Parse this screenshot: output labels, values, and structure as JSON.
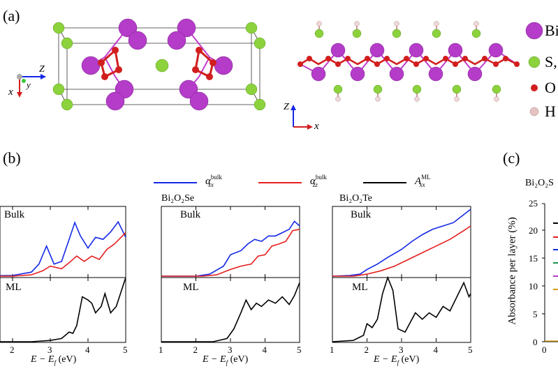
{
  "panel_labels": {
    "a": "(a)",
    "b": "(b)",
    "c": "(c)"
  },
  "legend_structure": {
    "items": [
      {
        "symbol": "Bi",
        "label": "Bi"
      },
      {
        "symbol": "S",
        "label": "S,"
      },
      {
        "symbol": "O",
        "label": "O"
      },
      {
        "symbol": "H",
        "label": "H"
      }
    ]
  },
  "axes_3d": {
    "z": "Z",
    "y": "y",
    "x": "x"
  },
  "axes_2d": {
    "z": "Z",
    "x": "x"
  },
  "colors": {
    "bi": "#b43cc8",
    "s": "#8cd23c",
    "o": "#d21e1e",
    "h": "#e6c3c3",
    "alpha_xx": "#1428e6",
    "alpha_zz": "#e61e1e",
    "a_ml": "#000000"
  },
  "legend_spectra": {
    "alpha_xx": {
      "main": "α",
      "sup": "bulk",
      "sub": "xx"
    },
    "alpha_zz": {
      "main": "α",
      "sup": "bulk",
      "sub": "zz"
    },
    "a_ml": {
      "main": "A",
      "sup": "ML",
      "sub": "xx"
    }
  },
  "panel_b": {
    "col2_title": "Bi₂O₂Se",
    "col3_title": "Bi₂O₂Te",
    "bulk_label": "Bulk",
    "ml_label": "ML",
    "xaxis_label": "E − E",
    "xaxis_sub": "f",
    "xaxis_unit": " (eV)",
    "col1_ticks": [
      "2",
      "3",
      "4",
      "5"
    ],
    "col23_ticks": [
      "1",
      "2",
      "3",
      "4",
      "5"
    ]
  },
  "chart_data": [
    {
      "type": "line",
      "title": "",
      "subplot": "Bulk (column 1, partial)",
      "xlim": [
        1,
        5
      ],
      "series": [
        {
          "name": "α_xx bulk",
          "x": [
            1.0,
            2.0,
            2.5,
            2.7,
            2.9,
            3.1,
            3.3,
            3.5,
            3.65,
            3.8,
            4.0,
            4.2,
            4.4,
            4.6,
            4.8,
            5.0
          ],
          "y": [
            0.0,
            0.01,
            0.06,
            0.18,
            0.45,
            0.18,
            0.22,
            0.55,
            0.8,
            0.6,
            0.42,
            0.58,
            0.55,
            0.66,
            0.81,
            0.58
          ]
        },
        {
          "name": "α_zz bulk",
          "x": [
            1.0,
            2.0,
            2.5,
            2.8,
            3.0,
            3.3,
            3.5,
            3.7,
            3.9,
            4.1,
            4.3,
            4.5,
            4.7,
            5.0
          ],
          "y": [
            0.0,
            0.0,
            0.02,
            0.08,
            0.15,
            0.11,
            0.2,
            0.3,
            0.22,
            0.3,
            0.25,
            0.4,
            0.48,
            0.65
          ]
        }
      ]
    },
    {
      "type": "line",
      "subplot": "ML (column 1, partial)",
      "xlim": [
        1,
        5
      ],
      "series": [
        {
          "name": "A_xx ML",
          "x": [
            1.0,
            2.5,
            3.0,
            3.3,
            3.5,
            3.6,
            3.7,
            3.85,
            4.0,
            4.1,
            4.2,
            4.35,
            4.45,
            4.6,
            4.75,
            5.0
          ],
          "y": [
            0.0,
            0.0,
            0.02,
            0.05,
            0.15,
            0.13,
            0.25,
            0.7,
            0.65,
            0.6,
            0.45,
            0.55,
            0.75,
            0.45,
            0.55,
            1.0
          ]
        }
      ]
    },
    {
      "type": "line",
      "subplot": "Bi₂O₂Se Bulk",
      "xlim": [
        1,
        5
      ],
      "series": [
        {
          "name": "α_xx bulk",
          "x": [
            1.0,
            2.0,
            2.4,
            2.8,
            3.0,
            3.3,
            3.5,
            3.7,
            3.9,
            4.1,
            4.3,
            4.5,
            4.7,
            4.85,
            5.0
          ],
          "y": [
            0.0,
            0.0,
            0.03,
            0.15,
            0.32,
            0.38,
            0.48,
            0.55,
            0.52,
            0.6,
            0.6,
            0.65,
            0.7,
            0.82,
            0.75
          ]
        },
        {
          "name": "α_zz bulk",
          "x": [
            1.0,
            2.2,
            2.6,
            3.0,
            3.3,
            3.6,
            3.8,
            4.0,
            4.2,
            4.4,
            4.6,
            4.8,
            5.0
          ],
          "y": [
            0.0,
            0.0,
            0.02,
            0.1,
            0.15,
            0.18,
            0.3,
            0.32,
            0.45,
            0.48,
            0.52,
            0.68,
            0.7
          ]
        }
      ]
    },
    {
      "type": "line",
      "subplot": "Bi₂O₂Se ML",
      "xlim": [
        1,
        5
      ],
      "series": [
        {
          "name": "A_xx ML",
          "x": [
            1.0,
            2.5,
            2.9,
            3.1,
            3.3,
            3.45,
            3.6,
            3.75,
            3.9,
            4.1,
            4.3,
            4.5,
            4.7,
            4.85,
            5.0
          ],
          "y": [
            0.0,
            0.0,
            0.05,
            0.2,
            0.45,
            0.65,
            0.5,
            0.6,
            0.55,
            0.65,
            0.6,
            0.7,
            0.58,
            0.72,
            0.92
          ]
        }
      ]
    },
    {
      "type": "line",
      "subplot": "Bi₂O₂Te Bulk",
      "xlim": [
        1,
        5
      ],
      "series": [
        {
          "name": "α_xx bulk",
          "x": [
            1.0,
            1.5,
            1.8,
            2.0,
            2.3,
            2.6,
            3.0,
            3.3,
            3.6,
            3.9,
            4.2,
            4.5,
            4.8,
            5.0
          ],
          "y": [
            0.0,
            0.01,
            0.03,
            0.1,
            0.18,
            0.28,
            0.4,
            0.52,
            0.62,
            0.7,
            0.75,
            0.8,
            0.92,
            1.0
          ]
        },
        {
          "name": "α_zz bulk",
          "x": [
            1.0,
            1.6,
            2.0,
            2.4,
            2.8,
            3.2,
            3.6,
            4.0,
            4.4,
            4.8,
            5.0
          ],
          "y": [
            0.0,
            0.0,
            0.03,
            0.08,
            0.15,
            0.25,
            0.35,
            0.45,
            0.55,
            0.68,
            0.75
          ]
        }
      ]
    },
    {
      "type": "line",
      "subplot": "Bi₂O₂Te ML",
      "xlim": [
        1,
        5
      ],
      "series": [
        {
          "name": "A_xx ML",
          "x": [
            1.0,
            1.6,
            1.9,
            2.0,
            2.15,
            2.3,
            2.45,
            2.6,
            2.75,
            2.9,
            3.1,
            3.4,
            3.6,
            3.8,
            4.0,
            4.2,
            4.4,
            4.6,
            4.8,
            4.95,
            5.0
          ],
          "y": [
            0.0,
            0.02,
            0.1,
            0.28,
            0.22,
            0.35,
            0.75,
            1.0,
            0.8,
            0.2,
            0.15,
            0.45,
            0.35,
            0.45,
            0.38,
            0.55,
            0.48,
            0.7,
            0.92,
            0.7,
            0.75
          ]
        }
      ]
    },
    {
      "type": "line",
      "subplot": "panel (c)",
      "title": "Bi₂O₂S",
      "ylabel": "Absorbance per layer (%)",
      "ylim": [
        0,
        25
      ],
      "yticks": [
        "0",
        "5",
        "10",
        "15",
        "20",
        "25"
      ],
      "xticks": [
        "0"
      ],
      "legend_marker_colors": [
        "#000000",
        "#e61e1e",
        "#1428e6",
        "#1e9650",
        "#b43cc8",
        "#d2a01e"
      ]
    }
  ]
}
